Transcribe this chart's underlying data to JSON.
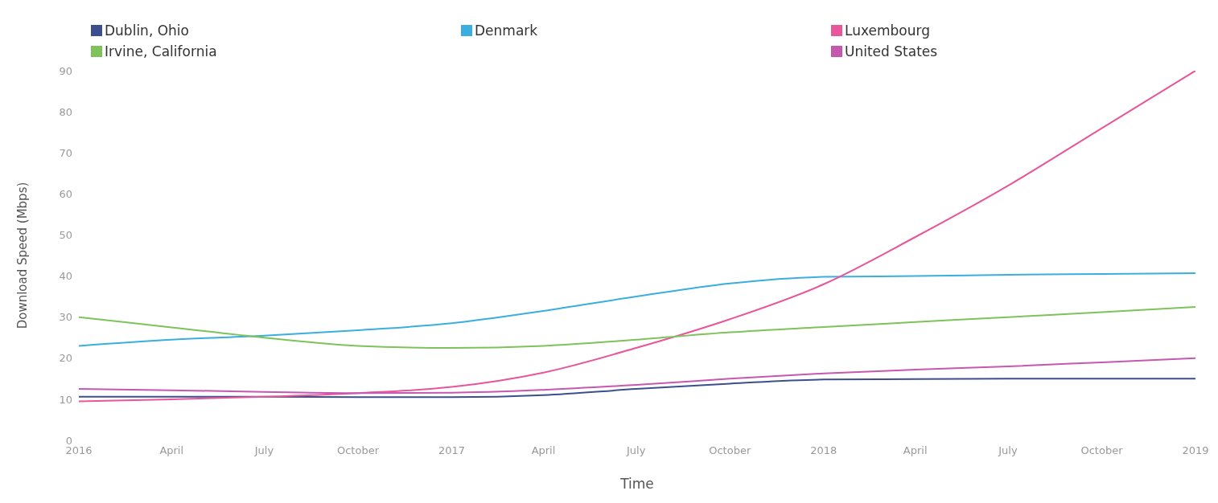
{
  "chart_data": {
    "type": "line",
    "xlabel": "Time",
    "ylabel": "Download Speed (Mbps)",
    "x": [
      "2016-01",
      "2016-04",
      "2016-07",
      "2016-10",
      "2017-01",
      "2017-04",
      "2017-07",
      "2017-10",
      "2018-01",
      "2018-04",
      "2018-07",
      "2018-10",
      "2019-01"
    ],
    "series": [
      {
        "name": "Dublin, Ohio",
        "color": "#3b4f8f",
        "values": [
          10.6,
          10.6,
          10.6,
          10.5,
          10.5,
          11,
          12.5,
          13.8,
          14.8,
          14.9,
          15,
          15,
          15
        ]
      },
      {
        "name": "Denmark",
        "color": "#3aaee0",
        "values": [
          23,
          24.5,
          25.5,
          26.8,
          28.5,
          31.5,
          35,
          38.2,
          39.8,
          40,
          40.3,
          40.5,
          40.7
        ]
      },
      {
        "name": "Luxembourg",
        "color": "#e8559a",
        "values": [
          9.5,
          10,
          10.6,
          11.5,
          13,
          16.5,
          22.5,
          29.5,
          38,
          49.5,
          62,
          76,
          90
        ]
      },
      {
        "name": "Irvine, California",
        "color": "#7dc35a",
        "values": [
          30,
          27.5,
          25,
          23,
          22.5,
          23,
          24.5,
          26.3,
          27.6,
          28.8,
          30,
          31.2,
          32.5
        ]
      },
      {
        "name": "United States",
        "color": "#c658b0",
        "values": [
          12.5,
          12.2,
          11.8,
          11.5,
          11.6,
          12.3,
          13.5,
          15,
          16.3,
          17.2,
          18,
          19,
          20
        ]
      }
    ],
    "xlim": [
      "2016-01",
      "2019-01"
    ],
    "xticks": [
      {
        "value": "2016-01",
        "label": "2016"
      },
      {
        "value": "2016-04",
        "label": "April"
      },
      {
        "value": "2016-07",
        "label": "July"
      },
      {
        "value": "2016-10",
        "label": "October"
      },
      {
        "value": "2017-01",
        "label": "2017"
      },
      {
        "value": "2017-04",
        "label": "April"
      },
      {
        "value": "2017-07",
        "label": "July"
      },
      {
        "value": "2017-10",
        "label": "October"
      },
      {
        "value": "2018-01",
        "label": "2018"
      },
      {
        "value": "2018-04",
        "label": "April"
      },
      {
        "value": "2018-07",
        "label": "July"
      },
      {
        "value": "2018-10",
        "label": "October"
      },
      {
        "value": "2019-01",
        "label": "2019"
      }
    ],
    "ylim": [
      0,
      90
    ],
    "yticks": [
      0,
      10,
      20,
      30,
      40,
      50,
      60,
      70,
      80,
      90
    ],
    "grid": false,
    "legend": "top left",
    "marker": "none",
    "line_style": "solid"
  }
}
